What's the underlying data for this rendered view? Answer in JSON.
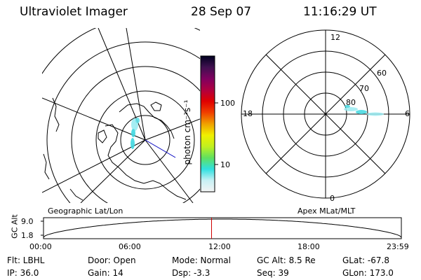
{
  "header": {
    "instrument": "Ultraviolet Imager",
    "date": "28 Sep 07",
    "time": "11:16:29 UT"
  },
  "colorbar": {
    "unit_label": "photon cm⁻²s⁻¹",
    "ticks": [
      "100",
      "10"
    ]
  },
  "left_panel": {
    "caption": "Geographic Lat/Lon"
  },
  "right_panel": {
    "caption": "Apex MLat/MLT",
    "mlt_labels": [
      "12",
      "18",
      "6",
      "0"
    ],
    "lat_labels": [
      "60",
      "70",
      "80"
    ]
  },
  "timeline": {
    "ylabel": "GC Alt",
    "y_ticks": [
      "9.0",
      "1.8"
    ],
    "x_ticks": [
      "00:00",
      "06:00",
      "12:00",
      "18:00",
      "23:59"
    ],
    "marker_hour": 11.27
  },
  "footer": {
    "flt": "Flt: LBHL",
    "ip": "IP: 36.0",
    "door": "Door: Open",
    "gain": "Gain: 14",
    "mode": "Mode: Normal",
    "dsp": "Dsp:   -3.3",
    "gcalt": "GC Alt: 8.5 Re",
    "seq": "Seq: 39",
    "glat": "GLat: -67.8",
    "glon": "GLon: 173.0"
  },
  "colors": {
    "colorbar": [
      "#f4f4f4",
      "#c8f0f4",
      "#30e0e0",
      "#60e060",
      "#c0f020",
      "#f0f000",
      "#f0a000",
      "#f04000",
      "#e00000",
      "#b00040",
      "#800060",
      "#401050",
      "#000020"
    ],
    "aurora": "#40d8e0",
    "marker": "#d00000",
    "coast_line": "#0000c0"
  }
}
